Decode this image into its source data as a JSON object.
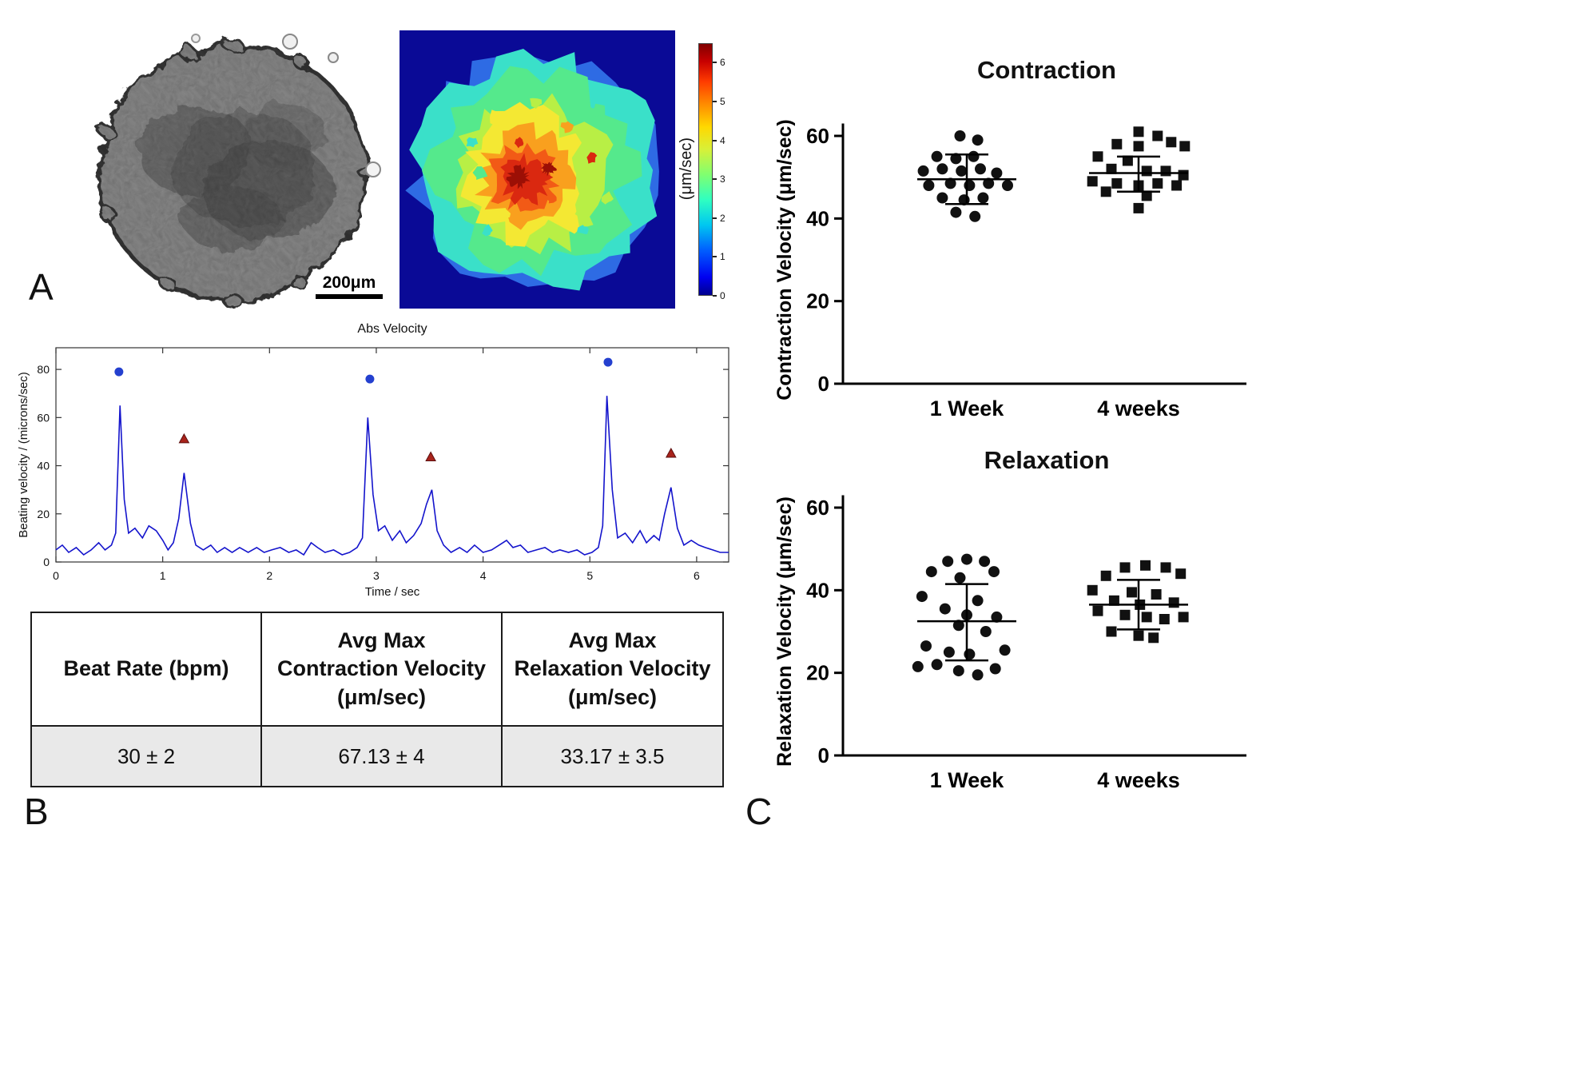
{
  "panel_labels": {
    "a": "A",
    "b": "B",
    "c": "C"
  },
  "microscopy": {
    "scale_bar": "200μm"
  },
  "heatmap": {
    "colorbar": {
      "label": "(μm/sec)",
      "ticks": [
        0,
        1,
        2,
        3,
        4,
        5,
        6
      ],
      "vmax": 6.5
    }
  },
  "table": {
    "headers": [
      "Beat Rate (bpm)",
      "Avg Max\nContraction Velocity\n(μm/sec)",
      "Avg Max\nRelaxation Velocity\n(μm/sec)"
    ],
    "values": [
      "30 ± 2",
      "67.13 ± 4",
      "33.17 ± 3.5"
    ]
  },
  "chart_data": [
    {
      "id": "abs_velocity",
      "type": "line",
      "title": "Abs Velocity",
      "xlabel": "Time / sec",
      "ylabel": "Beating velocity / (microns/sec)",
      "xlim": [
        0,
        6.3
      ],
      "ylim": [
        0,
        89
      ],
      "xticks": [
        0,
        1,
        2,
        3,
        4,
        5,
        6
      ],
      "yticks": [
        0,
        20,
        40,
        60,
        80
      ],
      "line_color": "#1414cc",
      "series": [
        [
          0,
          5
        ],
        [
          0.06,
          7
        ],
        [
          0.12,
          4
        ],
        [
          0.19,
          6
        ],
        [
          0.26,
          3
        ],
        [
          0.33,
          5
        ],
        [
          0.4,
          8
        ],
        [
          0.46,
          5
        ],
        [
          0.52,
          7
        ],
        [
          0.56,
          12
        ],
        [
          0.6,
          65
        ],
        [
          0.64,
          26
        ],
        [
          0.68,
          12
        ],
        [
          0.74,
          14
        ],
        [
          0.81,
          10
        ],
        [
          0.87,
          15
        ],
        [
          0.94,
          13
        ],
        [
          1,
          9
        ],
        [
          1.05,
          5
        ],
        [
          1.1,
          8
        ],
        [
          1.15,
          18
        ],
        [
          1.2,
          37
        ],
        [
          1.26,
          16
        ],
        [
          1.31,
          7
        ],
        [
          1.38,
          5
        ],
        [
          1.45,
          7
        ],
        [
          1.51,
          4
        ],
        [
          1.58,
          6
        ],
        [
          1.65,
          4
        ],
        [
          1.72,
          6
        ],
        [
          1.8,
          4
        ],
        [
          1.88,
          6
        ],
        [
          1.95,
          4
        ],
        [
          2.02,
          5
        ],
        [
          2.1,
          6
        ],
        [
          2.18,
          4
        ],
        [
          2.25,
          5
        ],
        [
          2.32,
          3
        ],
        [
          2.39,
          8
        ],
        [
          2.45,
          6
        ],
        [
          2.52,
          4
        ],
        [
          2.6,
          5
        ],
        [
          2.68,
          3
        ],
        [
          2.75,
          4
        ],
        [
          2.82,
          6
        ],
        [
          2.87,
          10
        ],
        [
          2.92,
          60
        ],
        [
          2.97,
          28
        ],
        [
          3.02,
          13
        ],
        [
          3.08,
          15
        ],
        [
          3.15,
          9
        ],
        [
          3.22,
          13
        ],
        [
          3.28,
          8
        ],
        [
          3.35,
          11
        ],
        [
          3.42,
          16
        ],
        [
          3.47,
          24
        ],
        [
          3.52,
          30
        ],
        [
          3.57,
          13
        ],
        [
          3.63,
          7
        ],
        [
          3.7,
          4
        ],
        [
          3.78,
          6
        ],
        [
          3.85,
          4
        ],
        [
          3.92,
          7
        ],
        [
          4,
          4
        ],
        [
          4.08,
          5
        ],
        [
          4.15,
          7
        ],
        [
          4.22,
          9
        ],
        [
          4.28,
          6
        ],
        [
          4.35,
          7
        ],
        [
          4.42,
          4
        ],
        [
          4.5,
          5
        ],
        [
          4.58,
          6
        ],
        [
          4.65,
          4
        ],
        [
          4.72,
          5
        ],
        [
          4.8,
          4
        ],
        [
          4.88,
          5
        ],
        [
          4.95,
          3
        ],
        [
          5.02,
          4
        ],
        [
          5.08,
          6
        ],
        [
          5.12,
          15
        ],
        [
          5.16,
          69
        ],
        [
          5.21,
          30
        ],
        [
          5.26,
          10
        ],
        [
          5.33,
          12
        ],
        [
          5.4,
          8
        ],
        [
          5.47,
          13
        ],
        [
          5.53,
          8
        ],
        [
          5.6,
          11
        ],
        [
          5.65,
          9
        ],
        [
          5.7,
          20
        ],
        [
          5.76,
          31
        ],
        [
          5.82,
          14
        ],
        [
          5.88,
          7
        ],
        [
          5.95,
          9
        ],
        [
          6.02,
          7
        ],
        [
          6.08,
          6
        ],
        [
          6.15,
          5
        ],
        [
          6.22,
          4
        ],
        [
          6.3,
          4
        ]
      ],
      "peak_markers": [
        {
          "name": "contraction-peaks",
          "marker": "circle",
          "color": "#2440cf",
          "points": [
            [
              0.59,
              79
            ],
            [
              2.94,
              76
            ],
            [
              5.17,
              83
            ]
          ]
        },
        {
          "name": "relaxation-peaks",
          "marker": "triangle",
          "color": "#a8231b",
          "points": [
            [
              1.2,
              51
            ],
            [
              3.51,
              43.5
            ],
            [
              5.76,
              45
            ]
          ]
        }
      ]
    },
    {
      "id": "contraction",
      "type": "scatter",
      "title": "Contraction",
      "ylabel": "Contraction Velocity (μm/sec)",
      "ylim": [
        0,
        63
      ],
      "yticks": [
        0,
        20,
        40,
        60
      ],
      "groups": [
        {
          "label": "1 Week",
          "marker": "circle",
          "mean": 49.5,
          "sd_top": 55.5,
          "sd_bottom": 43.5,
          "points": [
            [
              -0.05,
              60
            ],
            [
              0.08,
              59
            ],
            [
              -0.22,
              55
            ],
            [
              -0.08,
              54.5
            ],
            [
              0.05,
              55
            ],
            [
              -0.32,
              51.5
            ],
            [
              -0.18,
              52
            ],
            [
              -0.04,
              51.5
            ],
            [
              0.1,
              52
            ],
            [
              0.22,
              51
            ],
            [
              -0.28,
              48
            ],
            [
              -0.12,
              48.5
            ],
            [
              0.02,
              48
            ],
            [
              0.16,
              48.5
            ],
            [
              0.3,
              48
            ],
            [
              -0.18,
              45
            ],
            [
              -0.02,
              44.5
            ],
            [
              0.12,
              45
            ],
            [
              -0.08,
              41.5
            ],
            [
              0.06,
              40.5
            ]
          ]
        },
        {
          "label": "4 weeks",
          "marker": "square",
          "mean": 51,
          "sd_top": 55,
          "sd_bottom": 46.5,
          "points": [
            [
              0,
              61
            ],
            [
              0.14,
              60
            ],
            [
              -0.16,
              58
            ],
            [
              0,
              57.5
            ],
            [
              0.24,
              58.5
            ],
            [
              0.34,
              57.5
            ],
            [
              -0.3,
              55
            ],
            [
              -0.08,
              54
            ],
            [
              -0.2,
              52
            ],
            [
              0.06,
              51.5
            ],
            [
              0.2,
              51.5
            ],
            [
              0.33,
              50.5
            ],
            [
              -0.34,
              49
            ],
            [
              -0.16,
              48.5
            ],
            [
              0,
              48
            ],
            [
              0.14,
              48.5
            ],
            [
              0.28,
              48
            ],
            [
              -0.24,
              46.5
            ],
            [
              0.06,
              45.5
            ],
            [
              0,
              42.5
            ]
          ]
        }
      ]
    },
    {
      "id": "relaxation",
      "type": "scatter",
      "title": "Relaxation",
      "ylabel": "Relaxation Velocity (μm/sec)",
      "ylim": [
        0,
        63
      ],
      "yticks": [
        0,
        20,
        40,
        60
      ],
      "groups": [
        {
          "label": "1 Week",
          "marker": "circle",
          "mean": 32.5,
          "sd_top": 41.5,
          "sd_bottom": 23,
          "points": [
            [
              -0.14,
              47
            ],
            [
              0,
              47.5
            ],
            [
              0.13,
              47
            ],
            [
              -0.26,
              44.5
            ],
            [
              0.2,
              44.5
            ],
            [
              -0.05,
              43
            ],
            [
              -0.33,
              38.5
            ],
            [
              0.08,
              37.5
            ],
            [
              -0.16,
              35.5
            ],
            [
              0,
              34
            ],
            [
              0.22,
              33.5
            ],
            [
              -0.06,
              31.5
            ],
            [
              0.14,
              30
            ],
            [
              -0.3,
              26.5
            ],
            [
              -0.13,
              25
            ],
            [
              0.02,
              24.5
            ],
            [
              0.28,
              25.5
            ],
            [
              -0.22,
              22
            ],
            [
              -0.06,
              20.5
            ],
            [
              0.08,
              19.5
            ],
            [
              0.21,
              21
            ],
            [
              -0.36,
              21.5
            ]
          ]
        },
        {
          "label": "4 weeks",
          "marker": "square",
          "mean": 36.5,
          "sd_top": 42.5,
          "sd_bottom": 30.5,
          "points": [
            [
              -0.1,
              45.5
            ],
            [
              0.05,
              46
            ],
            [
              0.2,
              45.5
            ],
            [
              -0.24,
              43.5
            ],
            [
              0.31,
              44
            ],
            [
              -0.34,
              40
            ],
            [
              -0.05,
              39.5
            ],
            [
              0.13,
              39
            ],
            [
              -0.18,
              37.5
            ],
            [
              0.01,
              36.5
            ],
            [
              0.26,
              37
            ],
            [
              -0.3,
              35
            ],
            [
              -0.1,
              34
            ],
            [
              0.06,
              33.5
            ],
            [
              0.19,
              33
            ],
            [
              0.33,
              33.5
            ],
            [
              -0.2,
              30
            ],
            [
              0,
              29
            ],
            [
              0.11,
              28.5
            ]
          ]
        }
      ]
    }
  ]
}
